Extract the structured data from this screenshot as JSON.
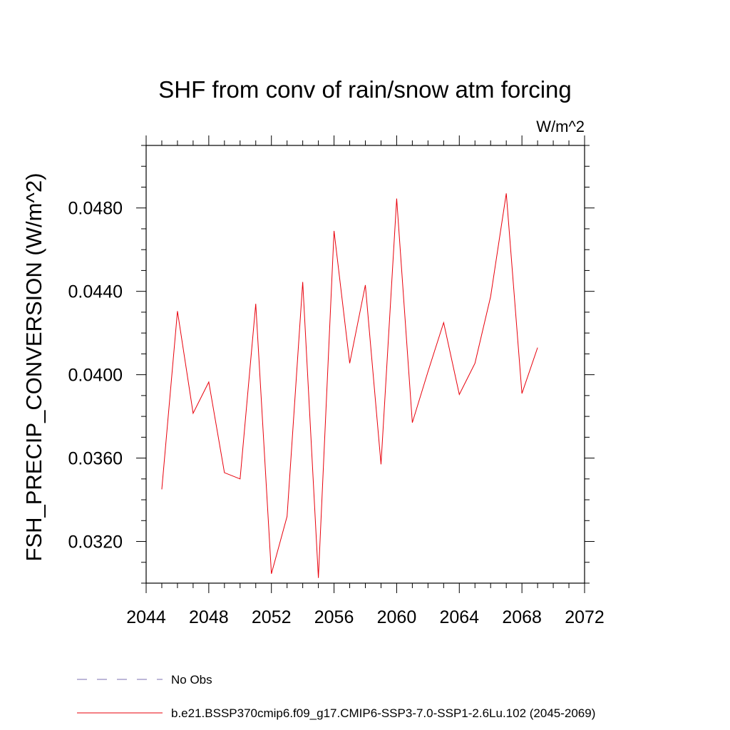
{
  "chart_data": {
    "type": "line",
    "title": "SHF from conv of rain/snow atm forcing",
    "units_label": "W/m^2",
    "xlabel": "",
    "ylabel": "FSH_PRECIP_CONVERSION  (W/m^2)",
    "xlim": [
      2044,
      2072
    ],
    "ylim": [
      0.03,
      0.051
    ],
    "x_ticks": [
      2044,
      2048,
      2052,
      2056,
      2060,
      2064,
      2068,
      2072
    ],
    "y_ticks": [
      0.032,
      0.036,
      0.04,
      0.044,
      0.048
    ],
    "x_tick_labels": [
      "2044",
      "2048",
      "2052",
      "2056",
      "2060",
      "2064",
      "2068",
      "2072"
    ],
    "y_tick_labels": [
      "0.0320",
      "0.0360",
      "0.0400",
      "0.0440",
      "0.0480"
    ],
    "series": [
      {
        "name": "b.e21.BSSP370cmip6.f09_g17.CMIP6-SSP3-7.0-SSP1-2.6Lu.102 (2045-2069)",
        "color": "#e8000b",
        "x": [
          2045,
          2046,
          2047,
          2048,
          2049,
          2050,
          2051,
          2052,
          2053,
          2054,
          2055,
          2056,
          2057,
          2058,
          2059,
          2060,
          2061,
          2062,
          2063,
          2064,
          2065,
          2066,
          2067,
          2068,
          2069
        ],
        "y": [
          0.0345,
          0.04305,
          0.03815,
          0.03965,
          0.0353,
          0.035,
          0.0434,
          0.03045,
          0.0332,
          0.04445,
          0.03025,
          0.0469,
          0.04055,
          0.0443,
          0.0357,
          0.04845,
          0.0377,
          0.04015,
          0.0425,
          0.03905,
          0.04055,
          0.04375,
          0.0487,
          0.0391,
          0.0413
        ]
      }
    ],
    "legend": [
      {
        "label": "No Obs",
        "style": "dashed",
        "color": "#7b6fb0"
      },
      {
        "label": "b.e21.BSSP370cmip6.f09_g17.CMIP6-SSP3-7.0-SSP1-2.6Lu.102 (2045-2069)",
        "style": "solid",
        "color": "#e8000b"
      }
    ],
    "legend_position": "bottom",
    "grid": false
  }
}
